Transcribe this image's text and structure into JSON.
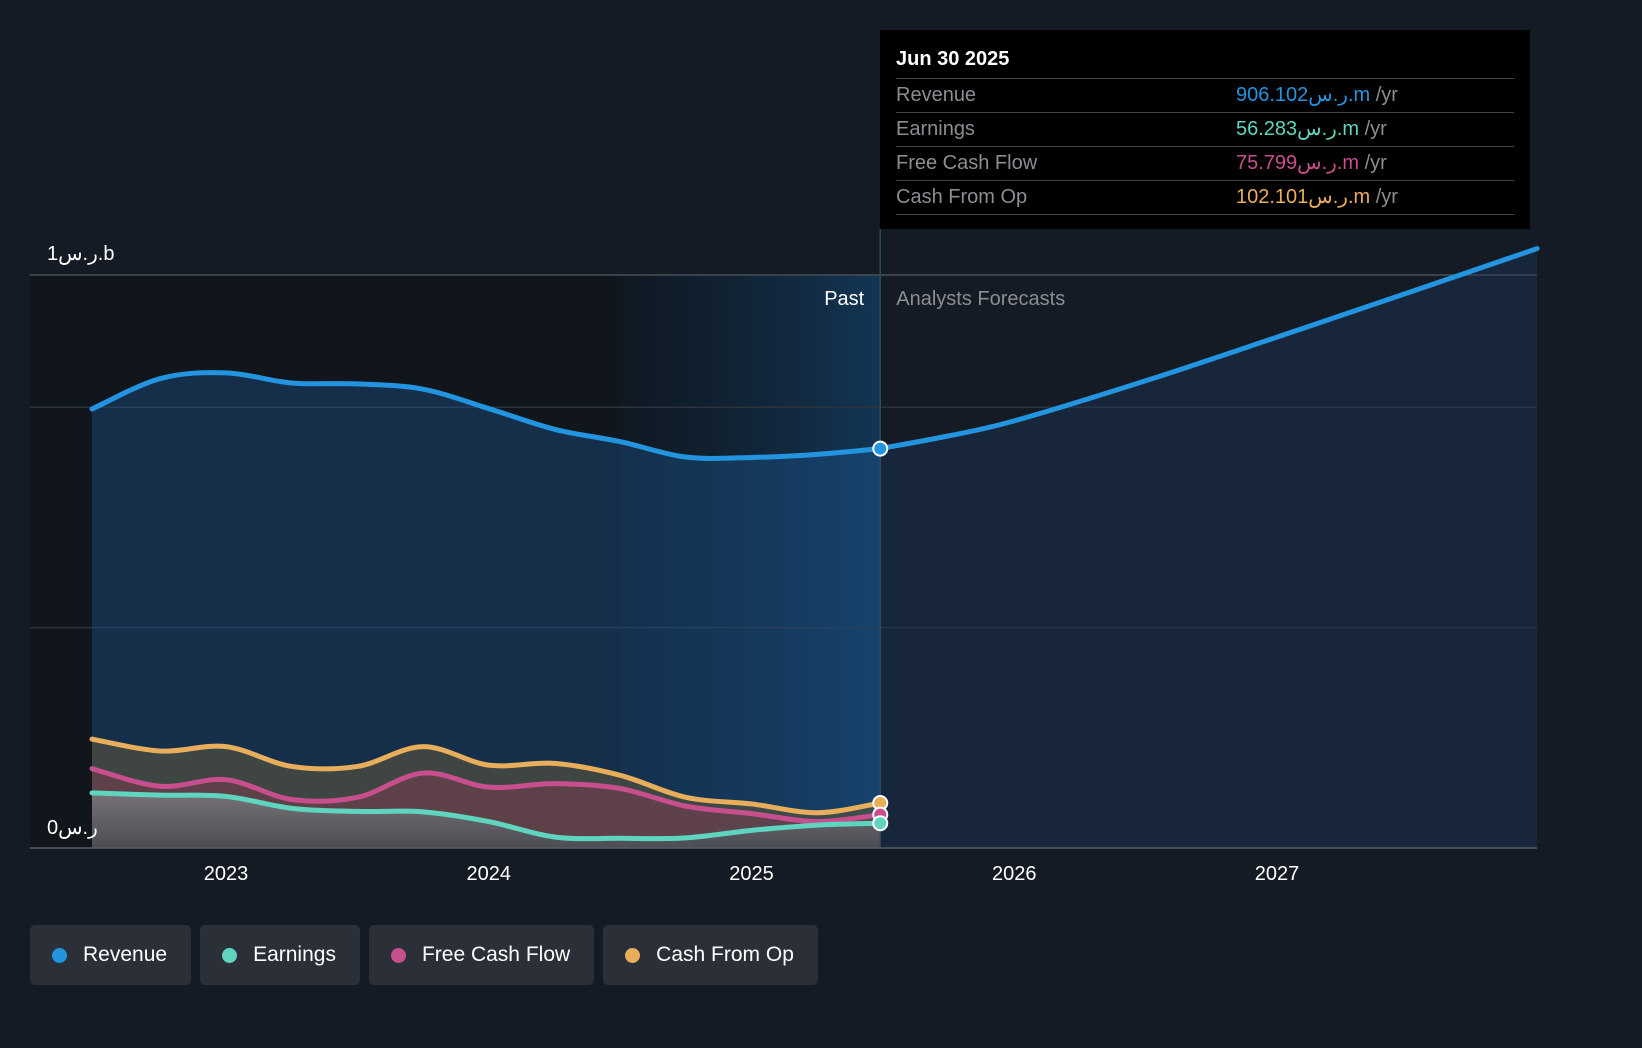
{
  "chart_data": {
    "type": "area",
    "title": "",
    "xlabel": "",
    "ylabel": "",
    "currency": "ر.س",
    "y_tick_labels": [
      "0ر.س",
      "1ر.س.b"
    ],
    "ylim": [
      0,
      1300
    ],
    "y_units": "ر.س m",
    "gridlines_at": [
      0,
      500,
      1000,
      1300
    ],
    "xlim": [
      2022.49,
      2027.99
    ],
    "x_ticks": [
      2023,
      2024,
      2025,
      2026,
      2027
    ],
    "x_tick_labels": [
      "2023",
      "2024",
      "2025",
      "2026",
      "2027"
    ],
    "past_label": "Past",
    "forecast_label": "Analysts Forecasts",
    "past_end_x": 2025.49,
    "highlight_start_x": 2024.5,
    "legend_position": "bottom-left",
    "series": [
      {
        "name": "Revenue",
        "color": "#2394df",
        "x": [
          2022.49,
          2022.75,
          2023.0,
          2023.25,
          2023.5,
          2023.75,
          2024.0,
          2024.25,
          2024.5,
          2024.75,
          2025.0,
          2025.25,
          2025.49
        ],
        "values": [
          996,
          1065,
          1078,
          1055,
          1053,
          1041,
          997,
          950,
          922,
          887,
          886,
          893,
          906.102
        ],
        "forecast_x": [
          2025.49,
          2025.75,
          2026.0,
          2026.5,
          2027.0,
          2027.5,
          2027.99
        ],
        "forecast_values": [
          906.102,
          935,
          969,
          1060,
          1159,
          1260,
          1360
        ]
      },
      {
        "name": "Earnings",
        "color": "#5fd5c0",
        "x": [
          2022.49,
          2022.75,
          2023.0,
          2023.25,
          2023.5,
          2023.75,
          2024.0,
          2024.25,
          2024.5,
          2024.75,
          2025.0,
          2025.25,
          2025.49
        ],
        "values": [
          125,
          120,
          117,
          90,
          83,
          82,
          60,
          25,
          22,
          23,
          40,
          52,
          56.283
        ]
      },
      {
        "name": "Free Cash Flow",
        "color": "#c84f8e",
        "x": [
          2022.49,
          2022.75,
          2023.0,
          2023.25,
          2023.5,
          2023.75,
          2024.0,
          2024.25,
          2024.5,
          2024.75,
          2025.0,
          2025.25,
          2025.49
        ],
        "values": [
          180,
          140,
          155,
          110,
          115,
          170,
          138,
          146,
          135,
          95,
          78,
          60,
          75.799
        ]
      },
      {
        "name": "Cash From Op",
        "color": "#e8ae5c",
        "x": [
          2022.49,
          2022.75,
          2023.0,
          2023.25,
          2023.5,
          2023.75,
          2024.0,
          2024.25,
          2024.5,
          2024.75,
          2025.0,
          2025.25,
          2025.49
        ],
        "values": [
          247,
          220,
          230,
          185,
          185,
          230,
          188,
          192,
          165,
          115,
          100,
          80,
          102.101
        ]
      }
    ]
  },
  "tooltip": {
    "date": "Jun 30 2025",
    "rows": [
      {
        "label": "Revenue",
        "value": "906.102ر.س.m",
        "unit": " /yr",
        "color": "#2394df"
      },
      {
        "label": "Earnings",
        "value": "56.283ر.س.m",
        "unit": " /yr",
        "color": "#5fd5c0"
      },
      {
        "label": "Free Cash Flow",
        "value": "75.799ر.س.m",
        "unit": " /yr",
        "color": "#c84f8e"
      },
      {
        "label": "Cash From Op",
        "value": "102.101ر.س.m",
        "unit": " /yr",
        "color": "#e8ae5c"
      }
    ]
  },
  "legend": [
    {
      "label": "Revenue",
      "color": "#2394df"
    },
    {
      "label": "Earnings",
      "color": "#5fd5c0"
    },
    {
      "label": "Free Cash Flow",
      "color": "#c84f8e"
    },
    {
      "label": "Cash From Op",
      "color": "#e8ae5c"
    }
  ]
}
